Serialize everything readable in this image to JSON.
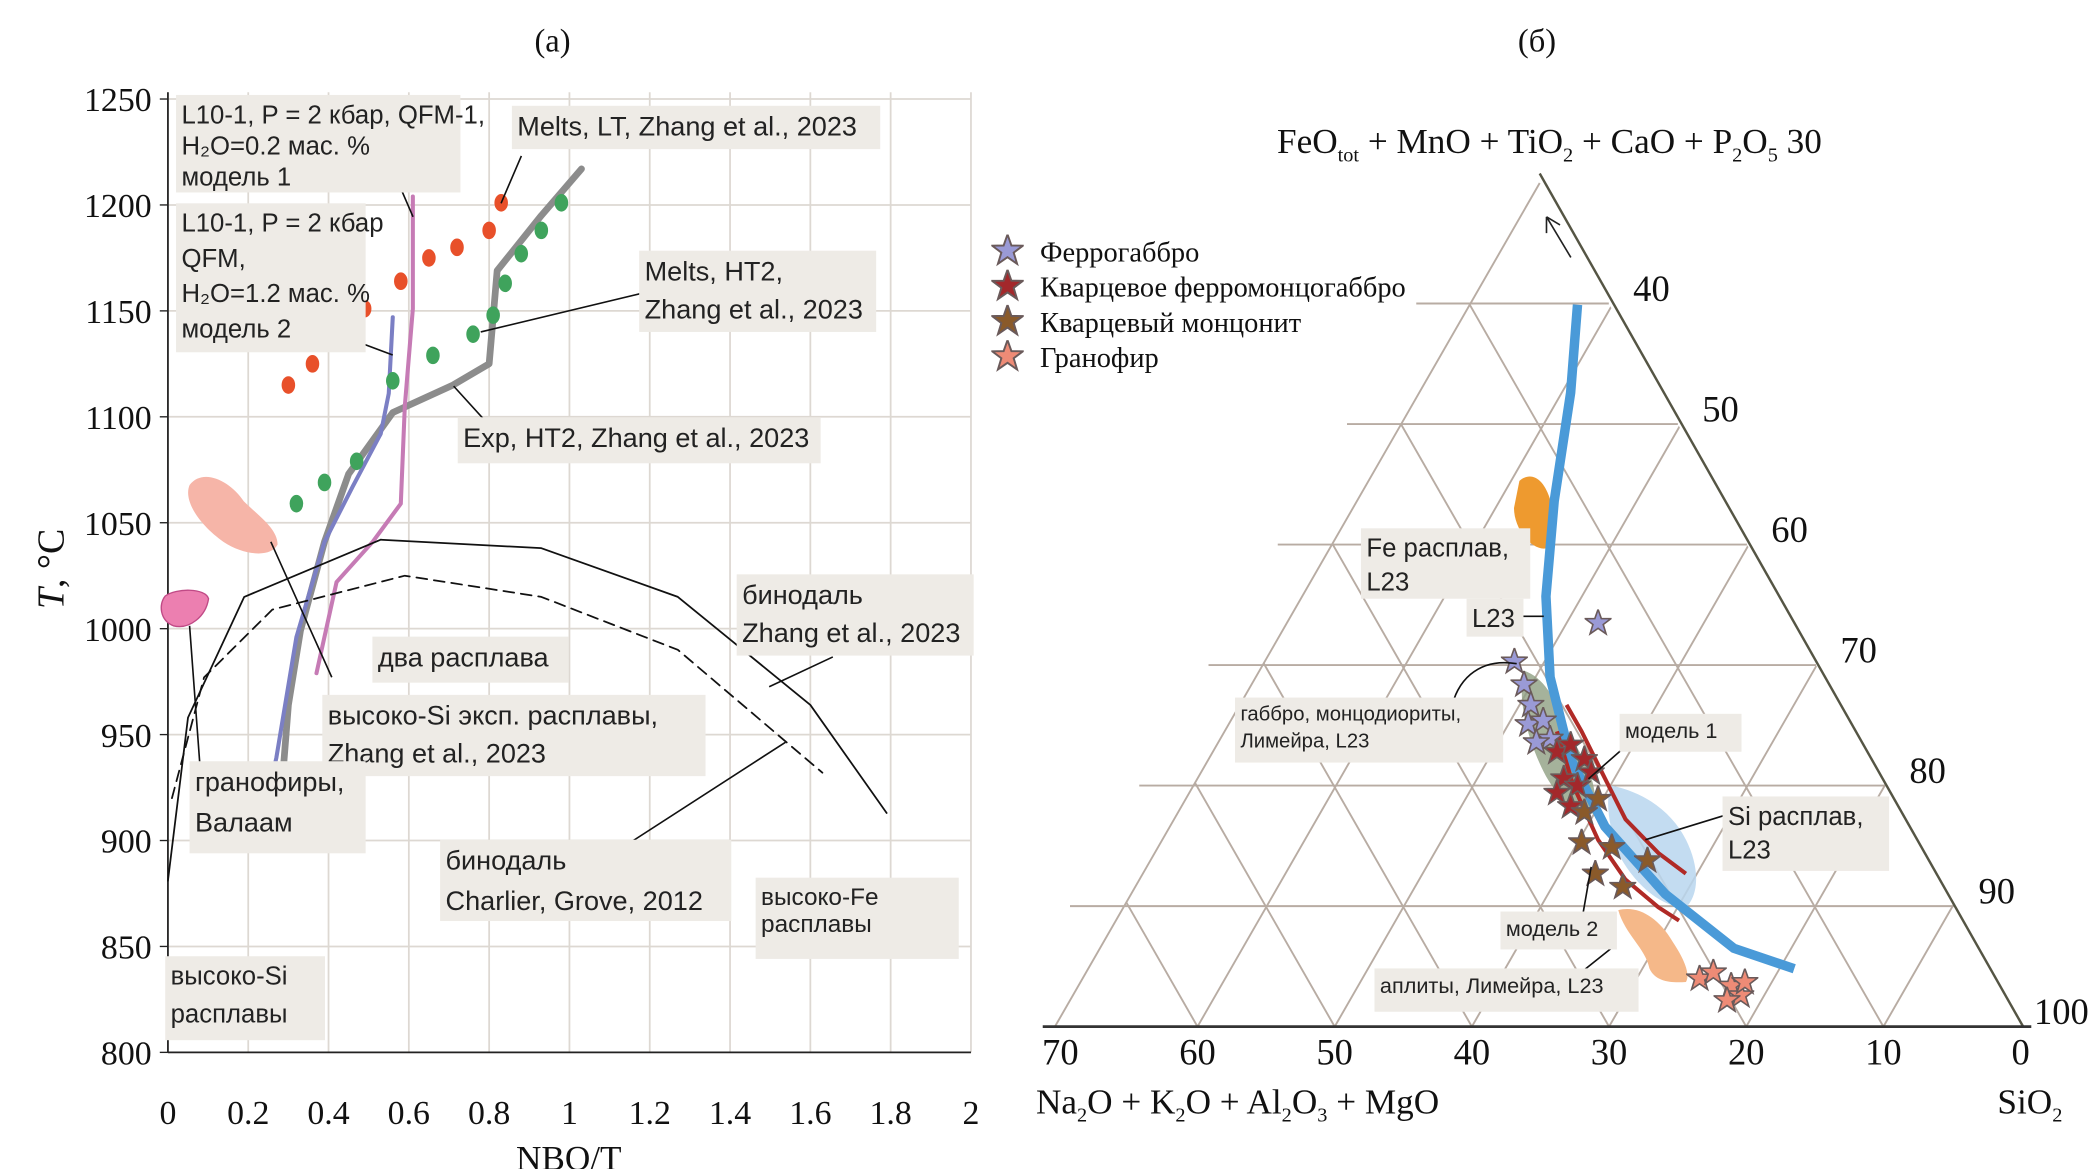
{
  "panels": {
    "a": "(а)",
    "b": "(б)"
  },
  "chart_data": [
    {
      "type": "line",
      "xlabel": "NBO/T",
      "ylabel_parts": [
        "T",
        ", °C"
      ],
      "xlim": [
        0,
        2
      ],
      "ylim": [
        800,
        1250
      ],
      "xticks": [
        "0",
        "0.2",
        "0.4",
        "0.6",
        "0.8",
        "1",
        "1.2",
        "1.4",
        "1.6",
        "1.8",
        "2"
      ],
      "yticks": [
        "800",
        "850",
        "900",
        "950",
        "1000",
        "1050",
        "1100",
        "1150",
        "1200",
        "1250"
      ],
      "grid": true,
      "series": [
        {
          "key": "exp_ht2",
          "style": "gray-thick",
          "color": "#8c8c8c",
          "x": [
            0.28,
            0.3,
            0.33,
            0.39,
            0.45,
            0.56,
            0.71,
            0.8,
            0.82,
            0.93,
            1.03
          ],
          "y": [
            916,
            964,
            999,
            1041,
            1073,
            1102,
            1115,
            1125,
            1169,
            1195,
            1217
          ]
        },
        {
          "key": "model2",
          "style": "line",
          "color": "#7b7fc4",
          "x": [
            0.22,
            0.27,
            0.32,
            0.39,
            0.46,
            0.53,
            0.55,
            0.56
          ],
          "y": [
            897,
            939,
            996,
            1041,
            1067,
            1092,
            1111,
            1147
          ]
        },
        {
          "key": "model1",
          "style": "line",
          "color": "#c67bb5",
          "x": [
            0.37,
            0.42,
            0.51,
            0.58,
            0.59,
            0.61,
            0.61
          ],
          "y": [
            979,
            1022,
            1041,
            1059,
            1105,
            1151,
            1204
          ]
        },
        {
          "key": "melts_lt",
          "style": "dots",
          "color": "#e8502a",
          "x": [
            0.3,
            0.36,
            0.42,
            0.49,
            0.58,
            0.65,
            0.72,
            0.8,
            0.83
          ],
          "y": [
            1115,
            1125,
            1137,
            1151,
            1164,
            1175,
            1180,
            1188,
            1201
          ]
        },
        {
          "key": "melts_ht2",
          "style": "dots",
          "color": "#3fa35c",
          "x": [
            0.32,
            0.39,
            0.47,
            0.56,
            0.66,
            0.76,
            0.81,
            0.84,
            0.88,
            0.93,
            0.98
          ],
          "y": [
            1059,
            1069,
            1079,
            1117,
            1129,
            1139,
            1148,
            1163,
            1177,
            1188,
            1201
          ]
        },
        {
          "key": "binodal_zhang",
          "style": "thin",
          "color": "#111111",
          "x": [
            0,
            0.05,
            0.19,
            0.53,
            0.93,
            1.27,
            1.6,
            1.79
          ],
          "y": [
            881,
            958,
            1015,
            1042,
            1038,
            1015,
            964,
            913
          ]
        },
        {
          "key": "binodal_charlier",
          "style": "dashed",
          "color": "#111111",
          "x": [
            0.01,
            0.09,
            0.26,
            0.59,
            0.93,
            1.27,
            1.63
          ],
          "y": [
            920,
            977,
            1009,
            1025,
            1015,
            990,
            932
          ]
        }
      ],
      "annotations": {
        "model1": [
          "L10-1, P = 2 кбар, QFM-1,",
          "H₂O=0.2 мас. %",
          "модель 1"
        ],
        "model2": [
          "L10-1, P = 2 кбар",
          "QFM,",
          "H₂O=1.2 мас. %",
          "модель 2"
        ],
        "melts_lt": [
          "Melts, LT, Zhang et al., 2023"
        ],
        "melts_ht2": [
          "Melts, HT2,",
          "Zhang et al., 2023"
        ],
        "exp_ht2": [
          "Exp, HT2, Zhang et al., 2023"
        ],
        "binodal_zhang": [
          "бинодаль",
          "Zhang et al., 2023"
        ],
        "two_melts": [
          "два расплава"
        ],
        "high_si_exp": [
          "высоко-Si эксп. расплавы,",
          "Zhang et al., 2023"
        ],
        "granophyres": [
          "гранофиры,",
          "Валаам"
        ],
        "binodal_charlier": [
          "бинодаль",
          "Charlier, Grove, 2012"
        ],
        "high_fe": [
          "высоко-Fe",
          "расплавы"
        ],
        "high_si": [
          "высоко-Si",
          "расплавы"
        ]
      }
    },
    {
      "type": "scatter",
      "subtype": "ternary",
      "top_axis_parts": [
        "FeO",
        "tot",
        " + MnO + TiO",
        "2",
        " + CaO + P",
        "2",
        "O",
        "5",
        " 30"
      ],
      "bottom_left_axis_parts": [
        "Na",
        "2",
        "O + K",
        "2",
        "O + Al",
        "2",
        "O",
        "3",
        " + MgO"
      ],
      "bottom_right_axis_parts": [
        "SiO",
        "2"
      ],
      "bottom_ticks": [
        "70",
        "60",
        "50",
        "40",
        "30",
        "20",
        "10",
        "0"
      ],
      "right_ticks": [
        "40",
        "50",
        "60",
        "70",
        "80",
        "90",
        "100"
      ],
      "grid": true,
      "legend_position": "top-left",
      "series": [
        {
          "name": "Феррогаббро",
          "color": "#9a9ad6",
          "x": [
            30.8,
            36.9,
            36.2,
            35.7,
            35.9,
            34.8,
            34.3,
            35.3
          ],
          "y": [
            66.5,
            69.7,
            71.6,
            73.3,
            74.9,
            74.6,
            76.1,
            76.4
          ]
        },
        {
          "name": "Кварцевое ферромонцогаббро",
          "color": "#a3282b",
          "x": [
            33.8,
            32.8,
            31.8,
            33.3,
            32.3,
            33.8,
            32.8,
            31.3
          ],
          "y": [
            77.2,
            76.6,
            77.8,
            79.4,
            80.0,
            80.6,
            81.7,
            78.9
          ]
        },
        {
          "name": "Кварцевый монцонит",
          "color": "#8a5a2a",
          "x": [
            31.8,
            32.0,
            29.8,
            31.0,
            29.0,
            27.2,
            30.8
          ],
          "y": [
            82.2,
            84.7,
            85.1,
            87.3,
            88.4,
            86.2,
            81.1
          ]
        },
        {
          "name": "Гранофир",
          "color": "#ee8b76",
          "x": [
            23.4,
            22.4,
            21.1,
            20.4,
            21.4,
            20.1
          ],
          "y": [
            96.0,
            95.5,
            96.6,
            97.4,
            97.8,
            96.3
          ]
        }
      ],
      "lines": [
        {
          "key": "l23",
          "color": "#4a9ad8",
          "x": [
            32.3,
            32.8,
            34.0,
            34.6,
            34.3,
            32.8,
            30.3,
            25.9,
            20.9,
            16.5
          ],
          "y": [
            40.1,
            47.4,
            56.4,
            64.3,
            71.0,
            77.8,
            83.4,
            89.0,
            93.5,
            95.2
          ]
        },
        {
          "key": "model1",
          "color": "#b02a26",
          "x": [
            33.1,
            32.0,
            30.3,
            28.8,
            26.4,
            24.4
          ],
          "y": [
            73.3,
            75.5,
            79.4,
            82.8,
            85.6,
            87.3
          ]
        },
        {
          "key": "model2",
          "color": "#b02a26",
          "x": [
            33.8,
            32.6,
            30.8,
            28.8,
            26.4,
            24.9
          ],
          "y": [
            75.5,
            80.0,
            84.5,
            87.8,
            90.1,
            91.2
          ]
        }
      ],
      "annotations": {
        "fe_melt": [
          "Fe расплав,",
          "L23"
        ],
        "l23": [
          "L23"
        ],
        "gabbro": [
          "габбро, монцодиориты,",
          "Лимейра, L23"
        ],
        "model1": [
          "модель 1"
        ],
        "si_melt": [
          "Si расплав,",
          "L23"
        ],
        "model2": [
          "модель 2"
        ],
        "aplites": [
          "аплиты, Лимейра, L23"
        ]
      }
    }
  ]
}
